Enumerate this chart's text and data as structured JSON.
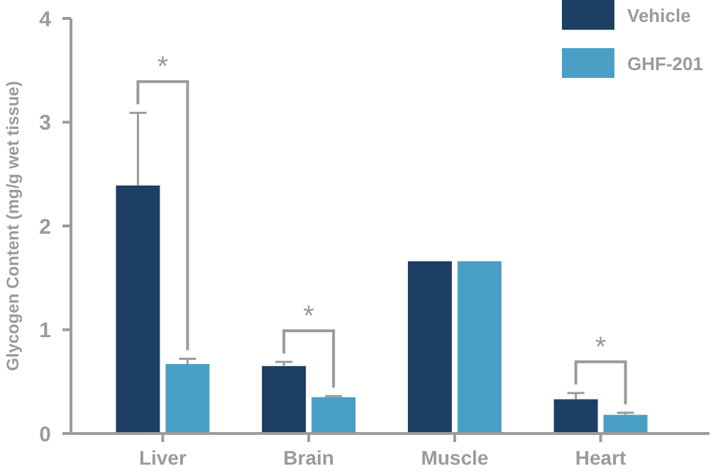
{
  "chart_data": {
    "type": "bar",
    "ylabel": "Glycogen Content (mg/g wet tissue)",
    "categories": [
      "Liver",
      "Brain",
      "Muscle",
      "Heart"
    ],
    "series": [
      {
        "name": "Vehicle",
        "color": "#1c3f63",
        "values": [
          2.39,
          0.65,
          1.66,
          0.33
        ],
        "errors": [
          [
            2.39,
            3.09
          ],
          [
            0.65,
            0.69
          ],
          null,
          [
            0.33,
            0.39
          ]
        ]
      },
      {
        "name": "GHF-201",
        "color": "#4a9fc4",
        "values": [
          0.67,
          0.35,
          1.66,
          0.18
        ],
        "errors": [
          [
            0.67,
            0.72
          ],
          [
            0.35,
            0.36
          ],
          null,
          [
            0.18,
            0.2
          ]
        ]
      }
    ],
    "ylim": [
      0,
      4
    ],
    "yticks": [
      0,
      1,
      2,
      3,
      4
    ],
    "grid": false,
    "legend": "top right",
    "annotations": [
      "*",
      "*",
      "*"
    ]
  }
}
